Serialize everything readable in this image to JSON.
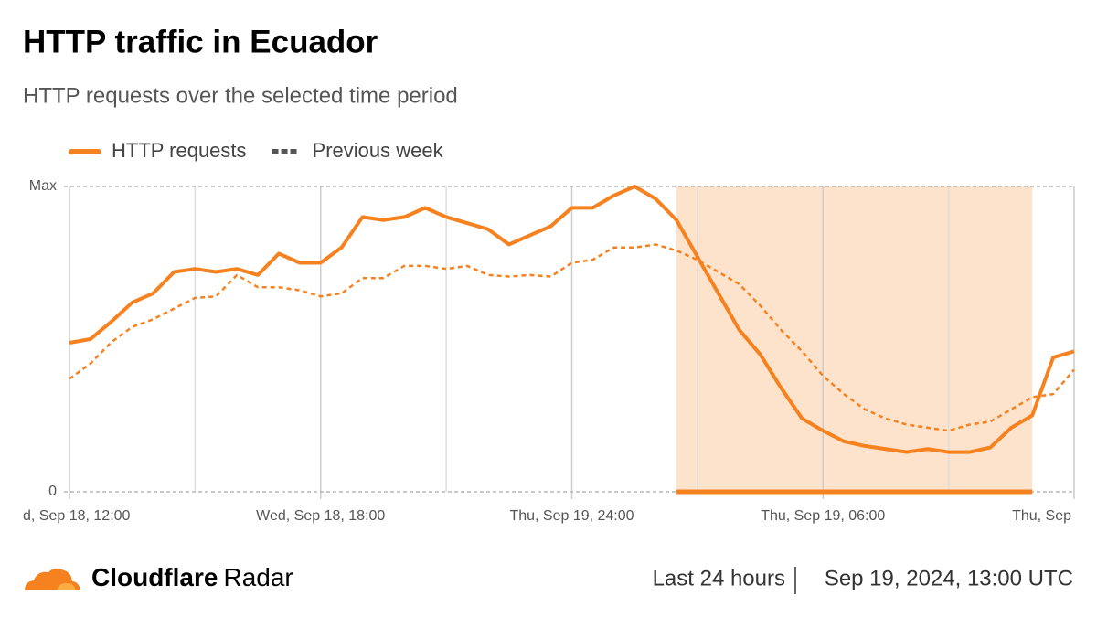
{
  "chart_data": {
    "type": "line",
    "title": "HTTP traffic in Ecuador",
    "subtitle": "HTTP requests over the selected time period",
    "x": [
      12,
      12.5,
      13,
      13.5,
      14,
      14.5,
      15,
      15.5,
      16,
      16.5,
      17,
      17.5,
      18,
      18.5,
      19,
      19.5,
      20,
      20.5,
      21,
      21.5,
      22,
      22.5,
      23,
      23.5,
      24,
      24.5,
      25,
      25.5,
      26,
      26.5,
      27,
      27.5,
      28,
      28.5,
      29,
      29.5,
      30,
      30.5,
      31,
      31.5,
      32,
      32.5,
      33,
      33.5,
      34,
      34.5,
      35,
      35.5,
      36
    ],
    "series": [
      {
        "name": "HTTP requests",
        "color": "#f6821f",
        "style": "solid",
        "values": [
          48.8,
          50,
          55.7,
          62,
          65,
          72,
          73,
          72,
          73,
          71,
          78,
          75,
          75,
          80,
          90,
          89,
          90,
          93,
          90,
          88,
          86,
          81,
          84,
          87,
          93,
          93,
          97,
          100,
          96,
          89,
          77,
          65,
          53,
          45,
          34,
          24,
          20,
          16.5,
          15,
          14,
          13,
          14,
          13,
          13,
          14.5,
          21,
          25,
          44,
          46
        ]
      },
      {
        "name": "Previous week",
        "color": "#f6821f",
        "style": "dashed",
        "values": [
          37,
          42,
          49,
          54,
          56.5,
          60,
          63.5,
          64,
          71,
          67,
          67,
          66,
          64,
          65,
          70,
          70,
          74,
          74,
          73,
          74,
          71,
          70.5,
          71,
          70.5,
          75,
          76,
          80,
          80,
          81,
          79,
          76,
          72,
          68,
          61,
          53,
          46,
          38,
          32,
          27,
          24,
          22,
          21,
          20,
          22,
          23,
          27,
          31,
          32,
          40
        ]
      }
    ],
    "xlim": [
      12,
      36
    ],
    "xticks": [
      {
        "value": 12,
        "label": "d, Sep 18, 12:00"
      },
      {
        "value": 18,
        "label": "Wed, Sep 18, 18:00"
      },
      {
        "value": 24,
        "label": "Thu, Sep 19, 24:00"
      },
      {
        "value": 30,
        "label": "Thu, Sep 19, 06:00"
      },
      {
        "value": 36,
        "label": "Thu, Sep"
      }
    ],
    "xminor": [
      15,
      21,
      27,
      33
    ],
    "ylim": [
      0,
      100
    ],
    "yticks": [
      0,
      {
        "value": 100,
        "label": "Max"
      }
    ],
    "highlight": [
      26.5,
      35
    ],
    "highlight_color": "#fde3cc",
    "grid": true,
    "footer": {
      "brand_bold": "Cloudflare",
      "brand": "Radar",
      "period": "Last 24 hours",
      "date": "Sep 19, 2024, 13:00 UTC"
    }
  }
}
